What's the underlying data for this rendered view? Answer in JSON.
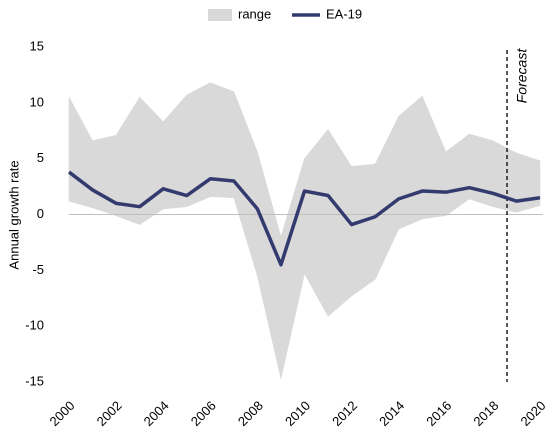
{
  "chart_data": {
    "type": "line",
    "y_label": "Annual growth rate",
    "x": [
      2000,
      2001,
      2002,
      2003,
      2004,
      2005,
      2006,
      2007,
      2008,
      2009,
      2010,
      2011,
      2012,
      2013,
      2014,
      2015,
      2016,
      2017,
      2018,
      2019,
      2020
    ],
    "xlim": [
      2000,
      2020
    ],
    "xticks": [
      2000,
      2002,
      2004,
      2006,
      2008,
      2010,
      2012,
      2014,
      2016,
      2018,
      2020
    ],
    "ylim": [
      -15,
      15
    ],
    "yticks": [
      -15,
      -10,
      -5,
      0,
      5,
      10,
      15
    ],
    "legend": "top",
    "band": {
      "name": "range",
      "color": "#d9d9d9",
      "upper": [
        10.5,
        6.6,
        7.1,
        10.5,
        8.3,
        10.7,
        11.8,
        11.0,
        5.6,
        -2.0,
        5.0,
        7.6,
        4.3,
        4.5,
        8.8,
        10.6,
        5.6,
        7.2,
        6.6,
        5.5,
        4.8
      ],
      "lower": [
        1.2,
        0.6,
        -0.1,
        -0.9,
        0.5,
        0.7,
        1.6,
        1.5,
        -5.5,
        -14.7,
        -5.3,
        -9.1,
        -7.3,
        -5.8,
        -1.3,
        -0.4,
        -0.1,
        1.4,
        0.7,
        0.2,
        0.8
      ]
    },
    "series": [
      {
        "name": "EA-19",
        "color": "#333a6e",
        "values": [
          3.8,
          2.2,
          1.0,
          0.7,
          2.3,
          1.7,
          3.2,
          3.0,
          0.5,
          -4.5,
          2.1,
          1.7,
          -0.9,
          -0.2,
          1.4,
          2.1,
          2.0,
          2.4,
          1.9,
          1.2,
          1.5
        ]
      }
    ],
    "forecast": {
      "x": 2018.6,
      "label": "Forecast"
    }
  }
}
